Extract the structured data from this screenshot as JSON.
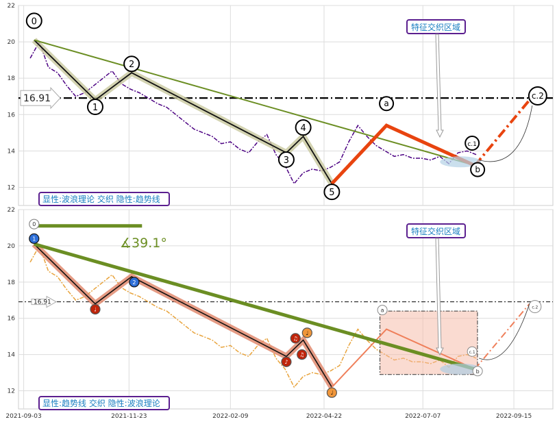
{
  "chart_data": [
    {
      "type": "line",
      "panel": "top",
      "ylim": [
        11,
        22
      ],
      "yticks": [
        12,
        14,
        16,
        18,
        20,
        22
      ],
      "grid": true,
      "reference_line": {
        "value": 16.91,
        "label": "16.91"
      },
      "price_series": {
        "color": "#4b0082",
        "x": [
          "2021-09-08",
          "2021-09-15",
          "2021-09-22",
          "2021-09-29",
          "2021-10-06",
          "2021-10-13",
          "2021-10-20",
          "2021-10-27",
          "2021-11-03",
          "2021-11-10",
          "2021-11-17",
          "2021-11-24",
          "2021-12-01",
          "2021-12-08",
          "2021-12-15",
          "2021-12-22",
          "2021-12-29",
          "2022-01-05",
          "2022-01-12",
          "2022-01-19",
          "2022-01-26",
          "2022-02-02",
          "2022-02-09",
          "2022-02-16",
          "2022-02-23",
          "2022-03-02",
          "2022-03-09",
          "2022-03-16",
          "2022-03-23",
          "2022-03-30",
          "2022-04-06",
          "2022-04-13",
          "2022-04-20",
          "2022-04-27",
          "2022-05-04",
          "2022-05-11",
          "2022-05-18",
          "2022-05-25",
          "2022-06-01",
          "2022-06-08",
          "2022-06-15",
          "2022-06-22",
          "2022-06-29",
          "2022-07-06",
          "2022-07-13",
          "2022-07-20",
          "2022-07-27",
          "2022-08-03",
          "2022-08-10",
          "2022-08-17"
        ],
        "values": [
          19.1,
          20.0,
          18.6,
          18.3,
          17.6,
          17.0,
          17.2,
          17.6,
          18.0,
          18.4,
          17.7,
          17.4,
          17.2,
          16.9,
          16.6,
          16.4,
          16.0,
          15.6,
          15.2,
          15.0,
          14.8,
          14.4,
          14.5,
          14.1,
          13.9,
          14.5,
          14.9,
          13.8,
          13.2,
          12.2,
          12.8,
          13.0,
          12.9,
          13.1,
          13.4,
          14.5,
          15.4,
          14.8,
          14.3,
          14.0,
          13.7,
          13.8,
          13.6,
          13.6,
          13.5,
          13.7,
          13.3,
          13.9,
          14.0,
          13.8
        ]
      },
      "wave_points": [
        {
          "label": "0",
          "date": "2021-09-11",
          "value": 20.1
        },
        {
          "label": "1",
          "date": "2021-10-28",
          "value": 16.8
        },
        {
          "label": "2",
          "date": "2021-11-25",
          "value": 18.3
        },
        {
          "label": "3",
          "date": "2022-03-24",
          "value": 13.9
        },
        {
          "label": "4",
          "date": "2022-04-06",
          "value": 14.8
        },
        {
          "label": "5",
          "date": "2022-04-28",
          "value": 12.2
        }
      ],
      "abc_points": [
        {
          "label": "a",
          "date": "2022-06-09",
          "value": 15.4
        },
        {
          "label": "b",
          "date": "2022-08-16",
          "value": 13.2
        },
        {
          "label": "c.1",
          "date": "2022-08-16",
          "value": 13.6
        },
        {
          "label": "c.2",
          "date": "2022-09-27",
          "value": 16.8
        }
      ],
      "trendline": {
        "from": {
          "date": "2021-09-11",
          "value": 20.1
        },
        "to": {
          "date": "2022-08-16",
          "value": 13.2
        }
      },
      "annotation": "特征交织区域",
      "legend_text": "显性:波浪理论 交织 隐性:趋势线"
    },
    {
      "type": "line",
      "panel": "bottom",
      "ylim": [
        11,
        22
      ],
      "yticks": [
        12,
        14,
        16,
        18,
        20,
        22
      ],
      "xticks": [
        "2021-09-03",
        "2021-11-23",
        "2022-02-09",
        "2022-04-22",
        "2022-07-07",
        "2022-09-15"
      ],
      "grid": true,
      "reference_line": {
        "value": 16.91,
        "label": "16.91"
      },
      "price_series_color": "#e8a33b",
      "wave_points": [
        {
          "label": "0",
          "date": "2021-09-11",
          "value": 20.1
        },
        {
          "label": "1",
          "date": "2021-09-11",
          "value": 20.1
        },
        {
          "label": "2",
          "date": "2021-11-25",
          "value": 18.3
        },
        {
          "label": "♩",
          "date": "2021-10-28",
          "value": 16.8
        },
        {
          "label": "♪",
          "date": "2022-03-24",
          "value": 13.9
        },
        {
          "label": "♫",
          "date": "2022-03-30",
          "value": 14.8
        },
        {
          "label": "♫",
          "date": "2022-04-06",
          "value": 14.2
        },
        {
          "label": "♩",
          "date": "2022-04-08",
          "value": 15.0
        },
        {
          "label": "♩",
          "date": "2022-04-28",
          "value": 12.2
        }
      ],
      "abc_points": [
        {
          "label": "a",
          "date": "2022-06-09",
          "value": 15.4
        },
        {
          "label": "b",
          "date": "2022-08-16",
          "value": 13.2
        },
        {
          "label": "c.1",
          "date": "2022-08-16",
          "value": 13.6
        },
        {
          "label": "c.2",
          "date": "2022-09-27",
          "value": 16.8
        }
      ],
      "trendline": {
        "from": {
          "date": "2021-09-11",
          "value": 20.1
        },
        "to": {
          "date": "2022-08-16",
          "value": 13.2
        }
      },
      "angle_label": "∡39.1°",
      "annotation": "特征交织区域",
      "legend_text": "显性:趋势线 交织 隐性:波浪理论"
    }
  ]
}
